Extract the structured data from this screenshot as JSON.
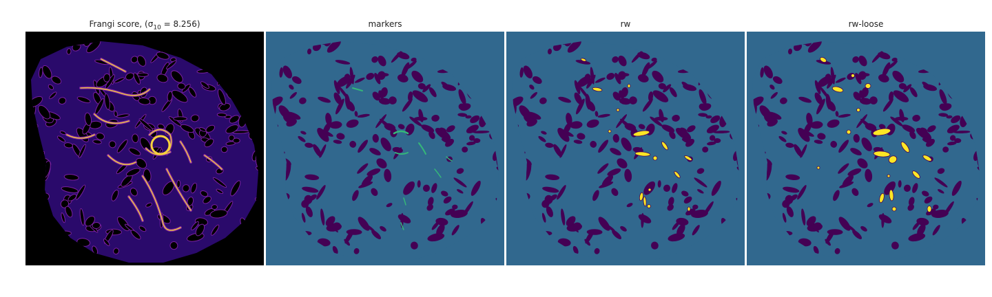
{
  "figure": {
    "panels": [
      {
        "id": "frangi",
        "title_prefix": "Frangi score, ",
        "title_math": "(σ",
        "title_sub": "10",
        "title_suffix": " = 8.256)",
        "colormap": "plasma"
      },
      {
        "id": "markers",
        "title": "markers",
        "colormap": "viridis"
      },
      {
        "id": "rw",
        "title": "rw",
        "colormap": "viridis"
      },
      {
        "id": "rw_loose",
        "title": "rw-loose",
        "colormap": "viridis"
      }
    ],
    "colors": {
      "background_dark": "#000000",
      "plasma_low": "#2a0a6b",
      "plasma_mid": "#7a1fa2",
      "plasma_high": "#f7d13d",
      "viridis_dark": "#440154",
      "viridis_mid": "#31688e",
      "viridis_teal": "#35b779",
      "viridis_yellow": "#fde725"
    }
  }
}
